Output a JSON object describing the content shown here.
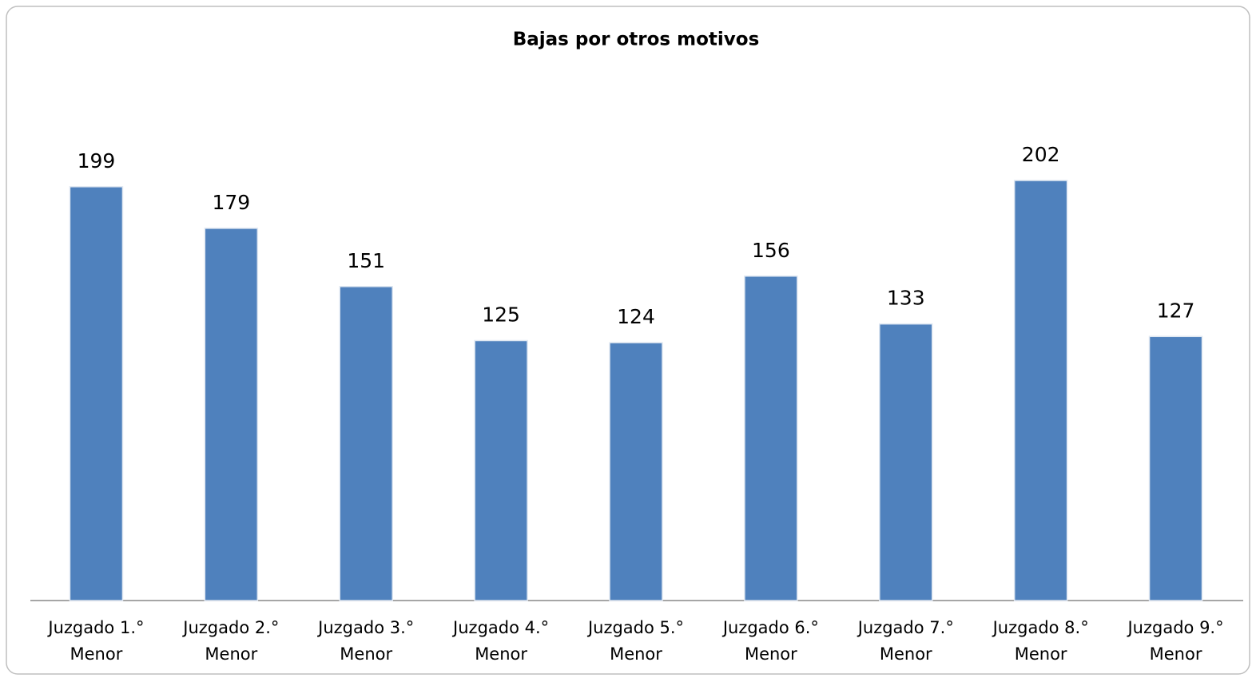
{
  "chart_data": {
    "type": "bar",
    "title": "Bajas por otros motivos",
    "categories": [
      "Juzgado 1.° Menor",
      "Juzgado 2.° Menor",
      "Juzgado 3.° Menor",
      "Juzgado 4.° Menor",
      "Juzgado 5.° Menor",
      "Juzgado 6.° Menor",
      "Juzgado 7.° Menor",
      "Juzgado 8.° Menor",
      "Juzgado 9.° Menor"
    ],
    "values": [
      199,
      179,
      151,
      125,
      124,
      156,
      133,
      202,
      127
    ],
    "color": "#4f81bd",
    "ylim": [
      0,
      250
    ],
    "grid": false
  }
}
